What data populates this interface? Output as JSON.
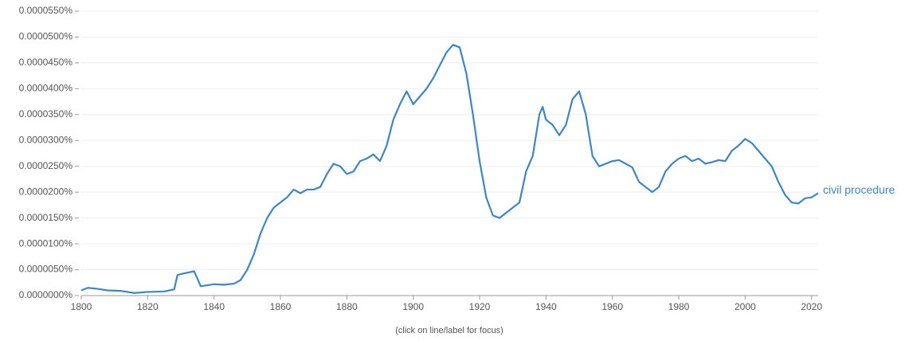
{
  "chart_data": {
    "type": "line",
    "note": "(click on line/label for focus)",
    "x": [
      1800,
      1802,
      1805,
      1808,
      1812,
      1816,
      1820,
      1825,
      1828,
      1829,
      1831,
      1834,
      1836,
      1840,
      1843,
      1846,
      1848,
      1850,
      1852,
      1854,
      1856,
      1858,
      1860,
      1862,
      1864,
      1866,
      1868,
      1870,
      1872,
      1874,
      1876,
      1878,
      1880,
      1882,
      1884,
      1886,
      1888,
      1890,
      1892,
      1894,
      1896,
      1898,
      1900,
      1902,
      1904,
      1906,
      1908,
      1910,
      1912,
      1914,
      1916,
      1918,
      1920,
      1922,
      1924,
      1926,
      1928,
      1930,
      1932,
      1934,
      1936,
      1938,
      1939,
      1940,
      1942,
      1944,
      1946,
      1948,
      1950,
      1952,
      1954,
      1956,
      1958,
      1960,
      1962,
      1964,
      1966,
      1968,
      1970,
      1972,
      1974,
      1976,
      1978,
      1980,
      1982,
      1984,
      1986,
      1988,
      1990,
      1992,
      1994,
      1996,
      1998,
      2000,
      2002,
      2004,
      2006,
      2008,
      2010,
      2012,
      2014,
      2016,
      2018,
      2020,
      2022
    ],
    "series": [
      {
        "name": "civil procedure",
        "color": "#3d85c6",
        "values": [
          1e-06,
          1.5e-06,
          1.3e-06,
          1e-06,
          9e-07,
          5e-07,
          7e-07,
          8e-07,
          1.2e-06,
          4e-06,
          4.3e-06,
          4.7e-06,
          1.8e-06,
          2.2e-06,
          2.1e-06,
          2.3e-06,
          3e-06,
          5e-06,
          8e-06,
          1.2e-05,
          1.5e-05,
          1.7e-05,
          1.8e-05,
          1.9e-05,
          2.05e-05,
          1.98e-05,
          2.05e-05,
          2.05e-05,
          2.1e-05,
          2.35e-05,
          2.55e-05,
          2.5e-05,
          2.35e-05,
          2.4e-05,
          2.6e-05,
          2.65e-05,
          2.73e-05,
          2.6e-05,
          2.9e-05,
          3.4e-05,
          3.7e-05,
          3.95e-05,
          3.7e-05,
          3.85e-05,
          4e-05,
          4.2e-05,
          4.45e-05,
          4.7e-05,
          4.85e-05,
          4.8e-05,
          4.3e-05,
          3.5e-05,
          2.6e-05,
          1.9e-05,
          1.55e-05,
          1.5e-05,
          1.6e-05,
          1.7e-05,
          1.8e-05,
          2.4e-05,
          2.7e-05,
          3.5e-05,
          3.65e-05,
          3.4e-05,
          3.3e-05,
          3.1e-05,
          3.3e-05,
          3.8e-05,
          3.95e-05,
          3.5e-05,
          2.7e-05,
          2.5e-05,
          2.55e-05,
          2.6e-05,
          2.62e-05,
          2.55e-05,
          2.48e-05,
          2.2e-05,
          2.1e-05,
          2e-05,
          2.1e-05,
          2.4e-05,
          2.55e-05,
          2.65e-05,
          2.7e-05,
          2.6e-05,
          2.65e-05,
          2.55e-05,
          2.58e-05,
          2.62e-05,
          2.6e-05,
          2.8e-05,
          2.9e-05,
          3.03e-05,
          2.95e-05,
          2.8e-05,
          2.65e-05,
          2.5e-05,
          2.2e-05,
          1.95e-05,
          1.8e-05,
          1.78e-05,
          1.88e-05,
          1.9e-05,
          1.98e-05
        ]
      }
    ],
    "xlim": [
      1800,
      2022
    ],
    "xticks": [
      1800,
      1820,
      1840,
      1860,
      1880,
      1900,
      1920,
      1940,
      1960,
      1980,
      2000,
      2020
    ],
    "ylim": [
      0,
      5.5e-05
    ],
    "yticks": [
      {
        "value": 0,
        "label": "0.0000000%"
      },
      {
        "value": 5e-06,
        "label": "0.0000050%"
      },
      {
        "value": 1e-05,
        "label": "0.0000100%"
      },
      {
        "value": 1.5e-05,
        "label": "0.0000150%"
      },
      {
        "value": 2e-05,
        "label": "0.0000200%"
      },
      {
        "value": 2.5e-05,
        "label": "0.0000250%"
      },
      {
        "value": 3e-05,
        "label": "0.0000300%"
      },
      {
        "value": 3.5e-05,
        "label": "0.0000350%"
      },
      {
        "value": 4e-05,
        "label": "0.0000400%"
      },
      {
        "value": 4.5e-05,
        "label": "0.0000450%"
      },
      {
        "value": 5e-05,
        "label": "0.0000500%"
      },
      {
        "value": 5.5e-05,
        "label": "0.0000550%"
      }
    ],
    "grid": true
  }
}
